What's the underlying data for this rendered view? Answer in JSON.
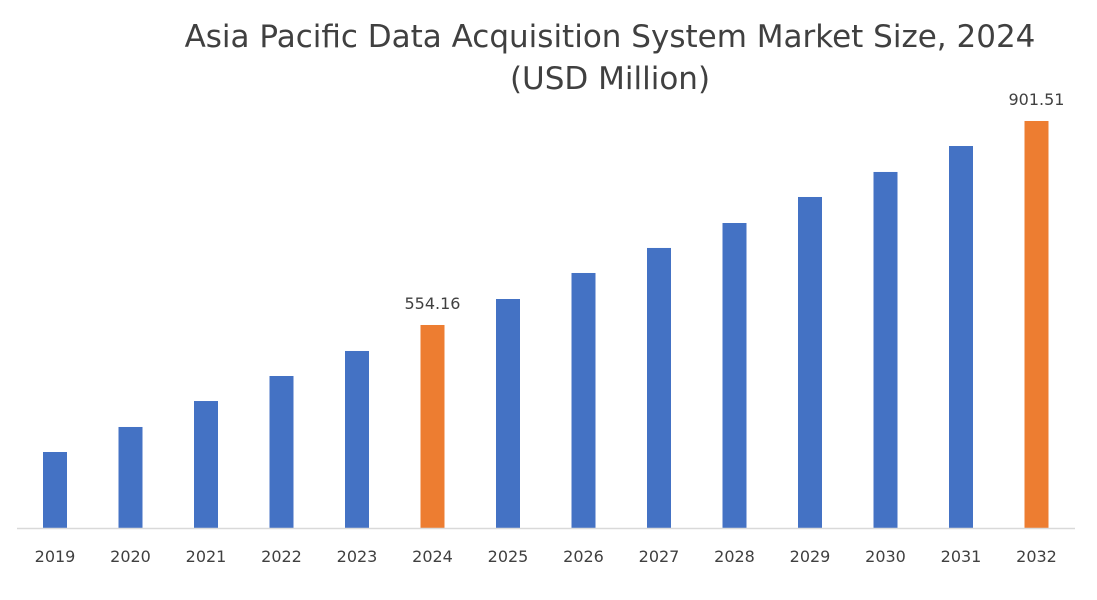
{
  "chart_data": {
    "type": "bar",
    "title": "Asia Pacific Data Acquisition System Market Size, 2024",
    "subtitle": "(USD Million)",
    "xlabel": "",
    "ylabel": "",
    "categories": [
      "2019",
      "2020",
      "2021",
      "2022",
      "2023",
      "2024",
      "2025",
      "2026",
      "2027",
      "2028",
      "2029",
      "2030",
      "2031",
      "2032"
    ],
    "values": [
      337.9,
      380.5,
      424.7,
      467.3,
      509.9,
      554.16,
      598.4,
      642.7,
      685.3,
      727.8,
      772.1,
      814.7,
      858.9,
      901.51
    ],
    "data_labels": {
      "2024": "554.16",
      "2032": "901.51"
    },
    "highlighted": [
      "2024",
      "2032"
    ],
    "ylim": [
      208.5,
      926
    ],
    "y_axis_visible": false,
    "grid": false,
    "legend": "none",
    "colors": {
      "bar": "#4472C4",
      "highlight": "#ED7D31",
      "axis": "#D9D9D9",
      "text": "#404040"
    }
  }
}
